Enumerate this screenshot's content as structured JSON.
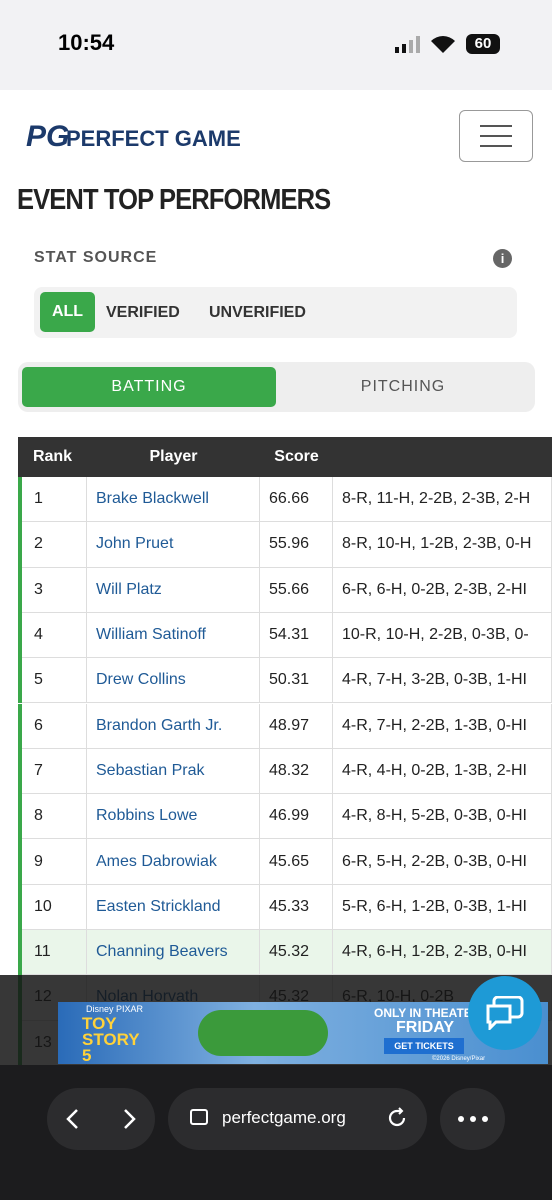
{
  "status_bar": {
    "time": "10:54",
    "battery": "60"
  },
  "header": {
    "logo": "PG",
    "brand": "PERFECT GAME"
  },
  "title": "EVENT TOP PERFORMERS",
  "stat_source": {
    "label": "STAT SOURCE",
    "options": [
      "ALL",
      "VERIFIED",
      "UNVERIFIED"
    ]
  },
  "tabs": [
    "BATTING",
    "PITCHING"
  ],
  "table": {
    "columns": [
      "Rank",
      "Player",
      "Score"
    ],
    "rows": [
      [
        "1",
        "Brake Blackwell",
        "66.66",
        "8-R, 11-H, 2-2B, 2-3B, 2-H"
      ],
      [
        "2",
        "John Pruet",
        "55.96",
        "8-R, 10-H, 1-2B, 2-3B, 0-H"
      ],
      [
        "3",
        "Will Platz",
        "55.66",
        "6-R, 6-H, 0-2B, 2-3B, 2-HI"
      ],
      [
        "4",
        "William Satinoff",
        "54.31",
        "10-R, 10-H, 2-2B, 0-3B, 0-"
      ],
      [
        "5",
        "Drew Collins",
        "50.31",
        "4-R, 7-H, 3-2B, 0-3B, 1-HI"
      ],
      [
        "6",
        "Brandon Garth Jr.",
        "48.97",
        "4-R, 7-H, 2-2B, 1-3B, 0-HI"
      ],
      [
        "7",
        "Sebastian Prak",
        "48.32",
        "4-R, 4-H, 0-2B, 1-3B, 2-HI"
      ],
      [
        "8",
        "Robbins Lowe",
        "46.99",
        "4-R, 8-H, 5-2B, 0-3B, 0-HI"
      ],
      [
        "9",
        "Ames Dabrowiak",
        "45.65",
        "6-R, 5-H, 2-2B, 0-3B, 0-HI"
      ],
      [
        "10",
        "Easten Strickland",
        "45.33",
        "5-R, 6-H, 1-2B, 0-3B, 1-HI"
      ],
      [
        "11",
        "Channing Beavers",
        "45.32",
        "4-R, 6-H, 1-2B, 2-3B, 0-HI"
      ],
      [
        "12",
        "Nolan Horvath",
        "45.32",
        "6-R, 10-H, 0-2B"
      ],
      [
        "13"
      ]
    ]
  },
  "ad": {
    "brand": "Disney PIXAR",
    "title": "TOY STORY 5",
    "tagline": "ONLY IN THEATERS",
    "day": "FRIDAY",
    "button": "GET TICKETS",
    "copyright": "©2026 Disney/Pixar"
  },
  "browser": {
    "url": "perfectgame.org"
  }
}
